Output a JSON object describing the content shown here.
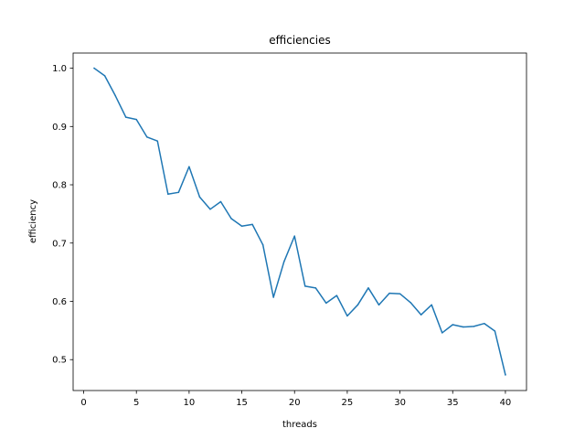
{
  "chart_data": {
    "type": "line",
    "title": "efficiencies",
    "xlabel": "threads",
    "ylabel": "efficiency",
    "xlim": [
      -1,
      42
    ],
    "ylim": [
      0.447,
      1.026
    ],
    "xticks": [
      0,
      5,
      10,
      15,
      20,
      25,
      30,
      35,
      40
    ],
    "yticks": [
      0.5,
      0.6,
      0.7,
      0.8,
      0.9,
      1.0
    ],
    "xtick_labels": [
      "0",
      "5",
      "10",
      "15",
      "20",
      "25",
      "30",
      "35",
      "40"
    ],
    "ytick_labels": [
      "0.5",
      "0.6",
      "0.7",
      "0.8",
      "0.9",
      "1.0"
    ],
    "grid": false,
    "series": [
      {
        "color": "#1f77b4",
        "x": [
          1,
          2,
          3,
          4,
          5,
          6,
          7,
          8,
          9,
          10,
          11,
          12,
          13,
          14,
          15,
          16,
          17,
          18,
          19,
          20,
          21,
          22,
          23,
          24,
          25,
          26,
          27,
          28,
          29,
          30,
          31,
          32,
          33,
          34,
          35,
          36,
          37,
          38,
          39,
          40
        ],
        "values": [
          1.0,
          0.987,
          0.953,
          0.916,
          0.912,
          0.882,
          0.875,
          0.784,
          0.787,
          0.831,
          0.779,
          0.758,
          0.771,
          0.742,
          0.729,
          0.732,
          0.697,
          0.607,
          0.668,
          0.712,
          0.626,
          0.623,
          0.597,
          0.61,
          0.575,
          0.594,
          0.623,
          0.594,
          0.614,
          0.613,
          0.598,
          0.577,
          0.594,
          0.546,
          0.56,
          0.556,
          0.557,
          0.562,
          0.549,
          0.474
        ]
      }
    ]
  }
}
